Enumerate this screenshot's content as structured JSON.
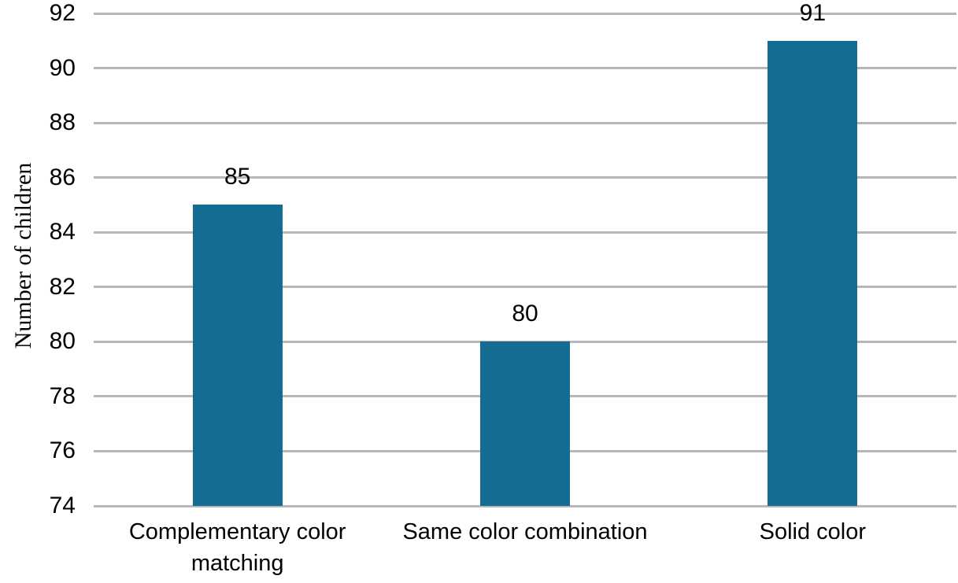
{
  "chart_data": {
    "type": "bar",
    "title": "",
    "xlabel": "",
    "ylabel": "Number of children",
    "categories": [
      "Complementary color matching",
      "Same color combination",
      "Solid color"
    ],
    "values": [
      85,
      80,
      91
    ],
    "data_labels": [
      "85",
      "80",
      "91"
    ],
    "ylim": [
      74,
      92
    ],
    "ytick_step": 2,
    "yticks": [
      92,
      90,
      88,
      86,
      84,
      82,
      80,
      78,
      76,
      74
    ],
    "grid": true,
    "legend_position": "none",
    "colors": {
      "bar": "#146C92",
      "gridline": "#B7B7BB",
      "text": "#000000",
      "background": "#FFFFFF"
    }
  }
}
